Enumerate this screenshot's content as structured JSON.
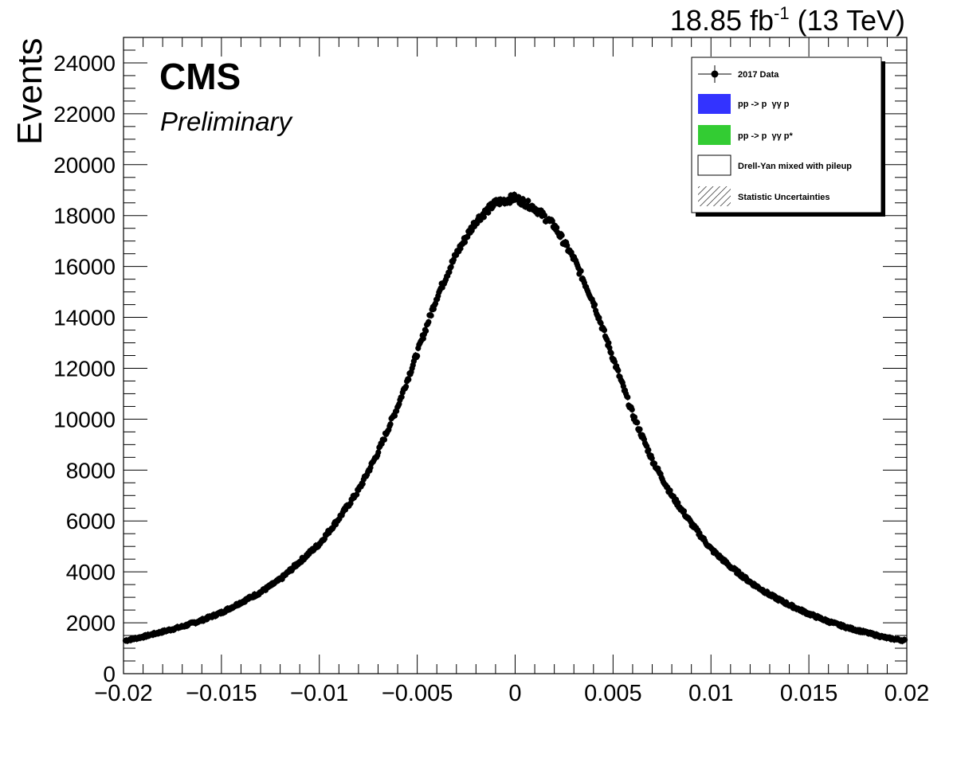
{
  "chart_data": {
    "type": "scatter",
    "title": "",
    "lumi_label": {
      "value": "18.85 fb",
      "superscript": "-1",
      "suffix": " (13 TeV)"
    },
    "experiment_label": "CMS",
    "status_label": "Preliminary",
    "xlabel": "",
    "ylabel": "Events",
    "xlim": [
      -0.02,
      0.02
    ],
    "ylim": [
      0,
      25000
    ],
    "x_ticks": [
      -0.02,
      -0.015,
      -0.01,
      -0.005,
      0,
      0.005,
      0.01,
      0.015,
      0.02
    ],
    "x_tick_labels": [
      "−0.02",
      "−0.015",
      "−0.01",
      "−0.005",
      "0",
      "0.005",
      "0.01",
      "0.015",
      "0.02"
    ],
    "y_ticks": [
      0,
      2000,
      4000,
      6000,
      8000,
      10000,
      12000,
      14000,
      16000,
      18000,
      20000,
      22000,
      24000
    ],
    "y_tick_labels": [
      "0",
      "2000",
      "4000",
      "6000",
      "8000",
      "10000",
      "12000",
      "14000",
      "16000",
      "18000",
      "20000",
      "22000",
      "24000"
    ],
    "grid": false,
    "legend_position": "top-right",
    "legend": [
      {
        "label": "2017 Data",
        "marker": "point-errorbar",
        "color": "#000000"
      },
      {
        "label": "pp -> p  γγ p",
        "marker": "fill",
        "color": "#3333ff"
      },
      {
        "label": "pp -> p  γγ p*",
        "marker": "fill",
        "color": "#33cc33"
      },
      {
        "label": "Drell-Yan mixed with pileup",
        "marker": "box",
        "color": "#ffffff"
      },
      {
        "label": "Statistic Uncertainties",
        "marker": "hatch",
        "color": "#000000"
      }
    ],
    "series": [
      {
        "name": "2017 Data",
        "color": "#000000",
        "x": [
          -0.0199,
          -0.019,
          -0.018,
          -0.017,
          -0.016,
          -0.015,
          -0.014,
          -0.013,
          -0.012,
          -0.011,
          -0.01,
          -0.009,
          -0.008,
          -0.007,
          -0.006,
          -0.005,
          -0.004,
          -0.003,
          -0.002,
          -0.001,
          0.0,
          0.001,
          0.002,
          0.003,
          0.004,
          0.005,
          0.006,
          0.007,
          0.008,
          0.009,
          0.01,
          0.011,
          0.012,
          0.013,
          0.014,
          0.015,
          0.016,
          0.017,
          0.018,
          0.019,
          0.0199
        ],
        "y": [
          1300,
          1450,
          1650,
          1850,
          2100,
          2400,
          2800,
          3200,
          3700,
          4400,
          5100,
          6100,
          7200,
          8700,
          10500,
          12600,
          14800,
          16500,
          17800,
          18500,
          18700,
          18300,
          17600,
          16300,
          14600,
          12400,
          10200,
          8400,
          7000,
          5900,
          4900,
          4200,
          3600,
          3100,
          2700,
          2350,
          2050,
          1800,
          1600,
          1400,
          1300
        ]
      }
    ]
  }
}
